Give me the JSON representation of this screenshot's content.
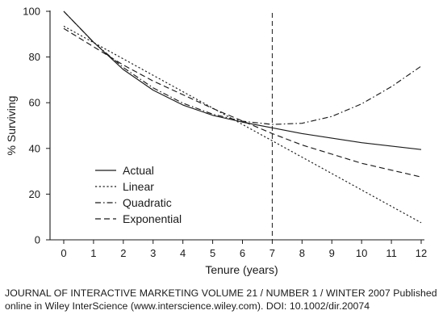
{
  "chart_data": {
    "type": "line",
    "xlabel": "Tenure (years)",
    "ylabel": "% Surviving",
    "xlim": [
      0,
      12
    ],
    "ylim": [
      0,
      100
    ],
    "x_ticks": [
      0,
      1,
      2,
      3,
      4,
      5,
      6,
      7,
      8,
      9,
      10,
      11,
      12
    ],
    "y_ticks": [
      0,
      20,
      40,
      60,
      80,
      100
    ],
    "grid": false,
    "legend_position": "bottom-left",
    "reference_line": {
      "orientation": "vertical",
      "x": 7,
      "style": "dashed"
    },
    "series": [
      {
        "name": "Actual",
        "style": "solid",
        "x": [
          0,
          1,
          2,
          3,
          4,
          5,
          6,
          7,
          8,
          9,
          10,
          11,
          12
        ],
        "values": [
          100,
          86.5,
          74.5,
          65.5,
          59,
          54.5,
          51.5,
          49,
          46.5,
          44.5,
          42.5,
          41,
          39.5
        ]
      },
      {
        "name": "Linear",
        "style": "dotted",
        "x": [
          0,
          12
        ],
        "values": [
          93.5,
          7.5
        ]
      },
      {
        "name": "Quadratic",
        "style": "dash-dot",
        "x": [
          0,
          1,
          2,
          3,
          4,
          5,
          6,
          7,
          8,
          9,
          10,
          11,
          12
        ],
        "values": [
          100,
          86.4,
          75.4,
          66.5,
          59.8,
          55,
          51.9,
          50.5,
          51,
          54,
          59.5,
          67,
          76
        ]
      },
      {
        "name": "Exponential",
        "style": "dashed",
        "x": [
          0,
          1,
          2,
          3,
          4,
          5,
          6,
          7,
          8,
          9,
          10,
          11,
          12
        ],
        "values": [
          92.5,
          84.5,
          76.5,
          69.5,
          63.5,
          57.5,
          52,
          46.5,
          41.5,
          37.5,
          33.5,
          30.5,
          27.5
        ]
      }
    ]
  },
  "caption": "JOURNAL OF INTERACTIVE MARKETING VOLUME 21 / NUMBER 1 / WINTER 2007 Published online in Wiley InterScience (www.interscience.wiley.com). DOI: 10.1002/dir.20074"
}
